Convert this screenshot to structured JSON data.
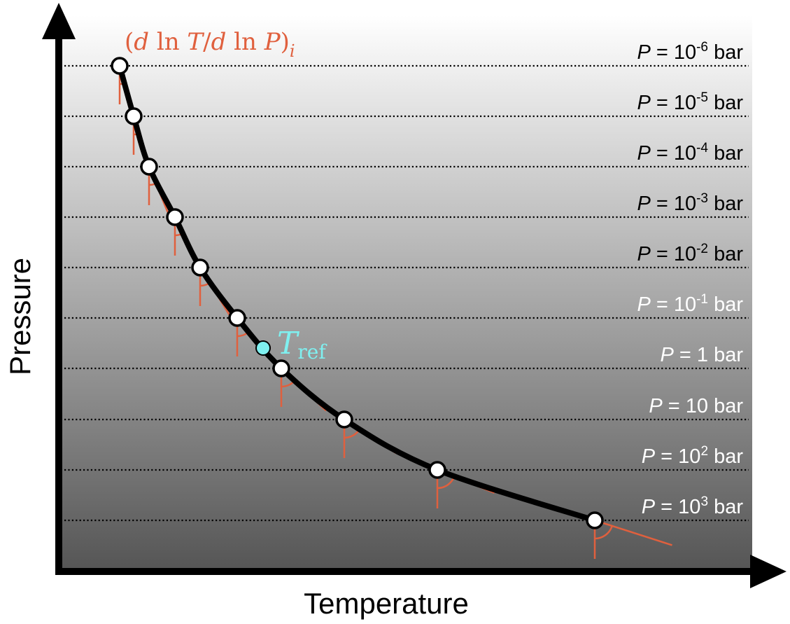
{
  "axes": {
    "x_label": "Temperature",
    "y_label": "Pressure"
  },
  "pressure_levels": [
    {
      "symbol": "P",
      "eq": " = ",
      "base": "10",
      "exp": "-6",
      "unit": " bar",
      "label_color": "#000000"
    },
    {
      "symbol": "P",
      "eq": " = ",
      "base": "10",
      "exp": "-5",
      "unit": " bar",
      "label_color": "#000000"
    },
    {
      "symbol": "P",
      "eq": " = ",
      "base": "10",
      "exp": "-4",
      "unit": " bar",
      "label_color": "#000000"
    },
    {
      "symbol": "P",
      "eq": " = ",
      "base": "10",
      "exp": "-3",
      "unit": " bar",
      "label_color": "#000000"
    },
    {
      "symbol": "P",
      "eq": " = ",
      "base": "10",
      "exp": "-2",
      "unit": " bar",
      "label_color": "#000000"
    },
    {
      "symbol": "P",
      "eq": " = ",
      "base": "10",
      "exp": "-1",
      "unit": " bar",
      "label_color": "#ffffff"
    },
    {
      "symbol": "P",
      "eq": " = ",
      "base": "1",
      "exp": "",
      "unit": " bar",
      "label_color": "#ffffff"
    },
    {
      "symbol": "P",
      "eq": " = ",
      "base": "10",
      "exp": "",
      "unit": " bar",
      "label_color": "#ffffff"
    },
    {
      "symbol": "P",
      "eq": " = ",
      "base": "10",
      "exp": "2",
      "unit": " bar",
      "label_color": "#ffffff"
    },
    {
      "symbol": "P",
      "eq": " = ",
      "base": "10",
      "exp": "3",
      "unit": " bar",
      "label_color": "#ffffff"
    }
  ],
  "annotations": {
    "gradient": {
      "open": "(",
      "d1": "d",
      "ln1": " ln ",
      "T": "T",
      "slash": "/",
      "d2": "d",
      "ln2": " ln ",
      "P": "P",
      "close": ")",
      "subscript": "i",
      "color": "#e0603e"
    },
    "reference": {
      "T": "T",
      "subscript": "ref",
      "color": "#7ff0f0"
    }
  },
  "colors": {
    "background_top": "#ffffff",
    "background_bottom": "#555555",
    "profile": "#000000",
    "axis": "#000000",
    "tangent": "#e0603e",
    "reference_point": "#7ff0f0",
    "node_fill": "#ffffff"
  }
}
